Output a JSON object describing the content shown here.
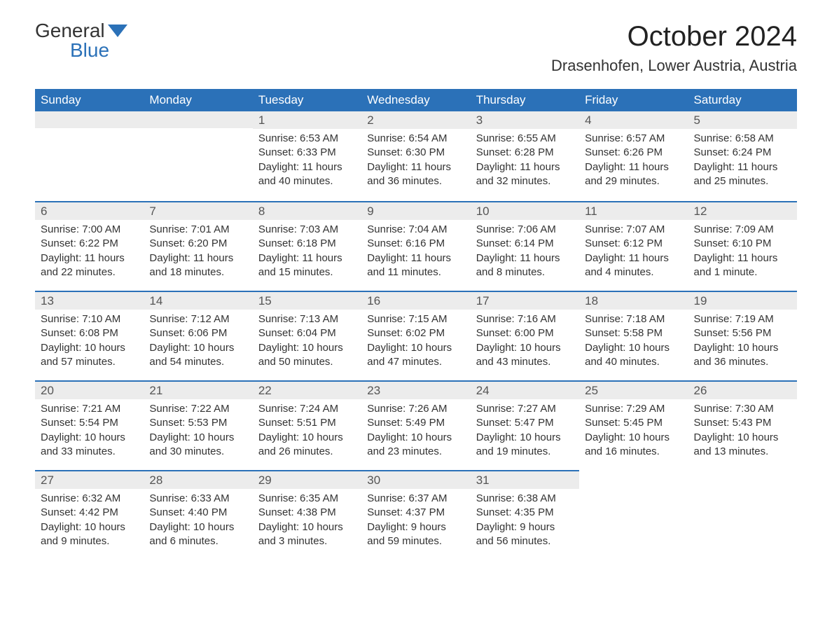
{
  "logo": {
    "text_a": "General",
    "text_b": "Blue",
    "accent_color": "#2b71b8"
  },
  "title": "October 2024",
  "location": "Drasenhofen, Lower Austria, Austria",
  "colors": {
    "header_bg": "#2b71b8",
    "header_text": "#ffffff",
    "band_bg": "#ececec",
    "band_border": "#2b71b8",
    "body_text": "#333333",
    "daynum_text": "#555555",
    "page_bg": "#ffffff"
  },
  "weekdays": [
    "Sunday",
    "Monday",
    "Tuesday",
    "Wednesday",
    "Thursday",
    "Friday",
    "Saturday"
  ],
  "weeks": [
    [
      null,
      null,
      {
        "n": "1",
        "sunrise": "Sunrise: 6:53 AM",
        "sunset": "Sunset: 6:33 PM",
        "day1": "Daylight: 11 hours",
        "day2": "and 40 minutes."
      },
      {
        "n": "2",
        "sunrise": "Sunrise: 6:54 AM",
        "sunset": "Sunset: 6:30 PM",
        "day1": "Daylight: 11 hours",
        "day2": "and 36 minutes."
      },
      {
        "n": "3",
        "sunrise": "Sunrise: 6:55 AM",
        "sunset": "Sunset: 6:28 PM",
        "day1": "Daylight: 11 hours",
        "day2": "and 32 minutes."
      },
      {
        "n": "4",
        "sunrise": "Sunrise: 6:57 AM",
        "sunset": "Sunset: 6:26 PM",
        "day1": "Daylight: 11 hours",
        "day2": "and 29 minutes."
      },
      {
        "n": "5",
        "sunrise": "Sunrise: 6:58 AM",
        "sunset": "Sunset: 6:24 PM",
        "day1": "Daylight: 11 hours",
        "day2": "and 25 minutes."
      }
    ],
    [
      {
        "n": "6",
        "sunrise": "Sunrise: 7:00 AM",
        "sunset": "Sunset: 6:22 PM",
        "day1": "Daylight: 11 hours",
        "day2": "and 22 minutes."
      },
      {
        "n": "7",
        "sunrise": "Sunrise: 7:01 AM",
        "sunset": "Sunset: 6:20 PM",
        "day1": "Daylight: 11 hours",
        "day2": "and 18 minutes."
      },
      {
        "n": "8",
        "sunrise": "Sunrise: 7:03 AM",
        "sunset": "Sunset: 6:18 PM",
        "day1": "Daylight: 11 hours",
        "day2": "and 15 minutes."
      },
      {
        "n": "9",
        "sunrise": "Sunrise: 7:04 AM",
        "sunset": "Sunset: 6:16 PM",
        "day1": "Daylight: 11 hours",
        "day2": "and 11 minutes."
      },
      {
        "n": "10",
        "sunrise": "Sunrise: 7:06 AM",
        "sunset": "Sunset: 6:14 PM",
        "day1": "Daylight: 11 hours",
        "day2": "and 8 minutes."
      },
      {
        "n": "11",
        "sunrise": "Sunrise: 7:07 AM",
        "sunset": "Sunset: 6:12 PM",
        "day1": "Daylight: 11 hours",
        "day2": "and 4 minutes."
      },
      {
        "n": "12",
        "sunrise": "Sunrise: 7:09 AM",
        "sunset": "Sunset: 6:10 PM",
        "day1": "Daylight: 11 hours",
        "day2": "and 1 minute."
      }
    ],
    [
      {
        "n": "13",
        "sunrise": "Sunrise: 7:10 AM",
        "sunset": "Sunset: 6:08 PM",
        "day1": "Daylight: 10 hours",
        "day2": "and 57 minutes."
      },
      {
        "n": "14",
        "sunrise": "Sunrise: 7:12 AM",
        "sunset": "Sunset: 6:06 PM",
        "day1": "Daylight: 10 hours",
        "day2": "and 54 minutes."
      },
      {
        "n": "15",
        "sunrise": "Sunrise: 7:13 AM",
        "sunset": "Sunset: 6:04 PM",
        "day1": "Daylight: 10 hours",
        "day2": "and 50 minutes."
      },
      {
        "n": "16",
        "sunrise": "Sunrise: 7:15 AM",
        "sunset": "Sunset: 6:02 PM",
        "day1": "Daylight: 10 hours",
        "day2": "and 47 minutes."
      },
      {
        "n": "17",
        "sunrise": "Sunrise: 7:16 AM",
        "sunset": "Sunset: 6:00 PM",
        "day1": "Daylight: 10 hours",
        "day2": "and 43 minutes."
      },
      {
        "n": "18",
        "sunrise": "Sunrise: 7:18 AM",
        "sunset": "Sunset: 5:58 PM",
        "day1": "Daylight: 10 hours",
        "day2": "and 40 minutes."
      },
      {
        "n": "19",
        "sunrise": "Sunrise: 7:19 AM",
        "sunset": "Sunset: 5:56 PM",
        "day1": "Daylight: 10 hours",
        "day2": "and 36 minutes."
      }
    ],
    [
      {
        "n": "20",
        "sunrise": "Sunrise: 7:21 AM",
        "sunset": "Sunset: 5:54 PM",
        "day1": "Daylight: 10 hours",
        "day2": "and 33 minutes."
      },
      {
        "n": "21",
        "sunrise": "Sunrise: 7:22 AM",
        "sunset": "Sunset: 5:53 PM",
        "day1": "Daylight: 10 hours",
        "day2": "and 30 minutes."
      },
      {
        "n": "22",
        "sunrise": "Sunrise: 7:24 AM",
        "sunset": "Sunset: 5:51 PM",
        "day1": "Daylight: 10 hours",
        "day2": "and 26 minutes."
      },
      {
        "n": "23",
        "sunrise": "Sunrise: 7:26 AM",
        "sunset": "Sunset: 5:49 PM",
        "day1": "Daylight: 10 hours",
        "day2": "and 23 minutes."
      },
      {
        "n": "24",
        "sunrise": "Sunrise: 7:27 AM",
        "sunset": "Sunset: 5:47 PM",
        "day1": "Daylight: 10 hours",
        "day2": "and 19 minutes."
      },
      {
        "n": "25",
        "sunrise": "Sunrise: 7:29 AM",
        "sunset": "Sunset: 5:45 PM",
        "day1": "Daylight: 10 hours",
        "day2": "and 16 minutes."
      },
      {
        "n": "26",
        "sunrise": "Sunrise: 7:30 AM",
        "sunset": "Sunset: 5:43 PM",
        "day1": "Daylight: 10 hours",
        "day2": "and 13 minutes."
      }
    ],
    [
      {
        "n": "27",
        "sunrise": "Sunrise: 6:32 AM",
        "sunset": "Sunset: 4:42 PM",
        "day1": "Daylight: 10 hours",
        "day2": "and 9 minutes."
      },
      {
        "n": "28",
        "sunrise": "Sunrise: 6:33 AM",
        "sunset": "Sunset: 4:40 PM",
        "day1": "Daylight: 10 hours",
        "day2": "and 6 minutes."
      },
      {
        "n": "29",
        "sunrise": "Sunrise: 6:35 AM",
        "sunset": "Sunset: 4:38 PM",
        "day1": "Daylight: 10 hours",
        "day2": "and 3 minutes."
      },
      {
        "n": "30",
        "sunrise": "Sunrise: 6:37 AM",
        "sunset": "Sunset: 4:37 PM",
        "day1": "Daylight: 9 hours",
        "day2": "and 59 minutes."
      },
      {
        "n": "31",
        "sunrise": "Sunrise: 6:38 AM",
        "sunset": "Sunset: 4:35 PM",
        "day1": "Daylight: 9 hours",
        "day2": "and 56 minutes."
      },
      null,
      null
    ]
  ]
}
